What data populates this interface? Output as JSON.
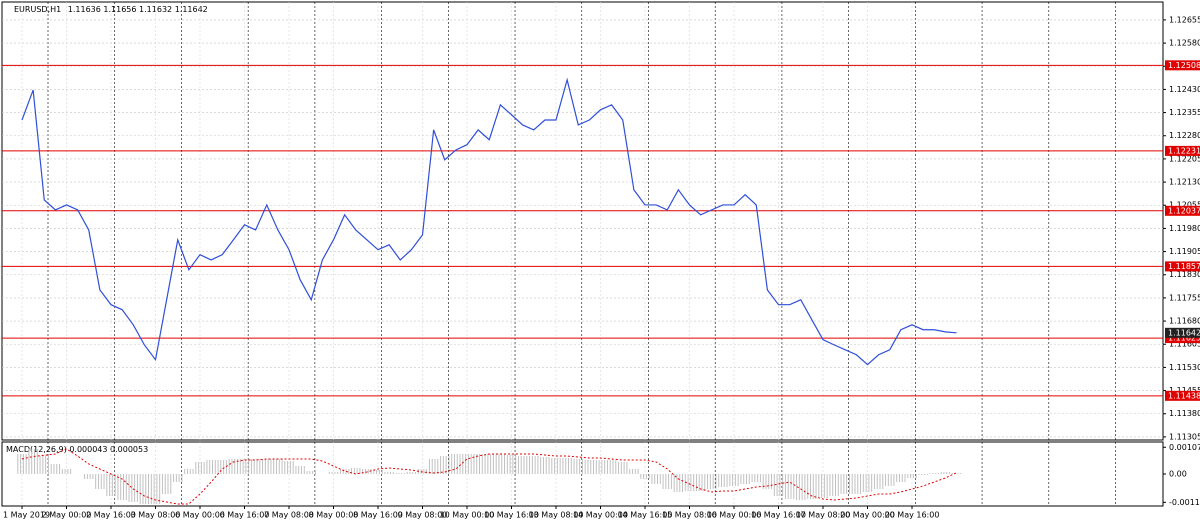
{
  "chart_data": [
    {
      "type": "line",
      "title": "EURUSD,H1",
      "ohlc": [
        1.11636,
        1.11656,
        1.11632,
        1.11642
      ],
      "categories": [
        "1 May 2019",
        null,
        null,
        null,
        "2 May 00:00",
        null,
        null,
        null,
        "2 May 16:00",
        null,
        null,
        null,
        "3 May 08:00",
        null,
        null,
        null,
        "6 May 00:00",
        null,
        null,
        null,
        "6 May 16:00",
        null,
        null,
        null,
        "7 May 08:00",
        null,
        null,
        null,
        "8 May 00:00",
        null,
        null,
        null,
        "8 May 16:00",
        null,
        null,
        null,
        "9 May 08:00",
        null,
        null,
        null,
        "10 May 00:00",
        null,
        null,
        null,
        "10 May 16:00",
        null,
        null,
        null,
        "13 May 08:00",
        null,
        null,
        null,
        "14 May 00:00",
        null,
        null,
        null,
        "14 May 16:00",
        null,
        null,
        null,
        "15 May 08:00",
        null,
        null,
        null,
        "16 May 00:00",
        null,
        null,
        null,
        "16 May 16:00",
        null,
        null,
        null,
        "17 May 08:00",
        null,
        null,
        null,
        "20 May 00:00",
        null,
        null,
        null,
        "20 May 16:00",
        null,
        null,
        null,
        null
      ],
      "values": [
        1.12331,
        1.12428,
        1.12072,
        1.1204,
        1.12056,
        1.1204,
        1.11975,
        1.11781,
        1.11733,
        1.11717,
        1.11668,
        1.11603,
        1.11555,
        1.11749,
        1.11943,
        1.11846,
        1.11895,
        1.11878,
        1.11895,
        1.11943,
        1.11992,
        1.11975,
        1.12056,
        1.11975,
        1.11911,
        1.11814,
        1.11749,
        1.11878,
        1.11943,
        1.12024,
        1.11975,
        1.11943,
        1.11911,
        1.11927,
        1.11878,
        1.11911,
        1.11959,
        1.12299,
        1.12202,
        1.12234,
        1.12251,
        1.12299,
        1.12267,
        1.1238,
        1.12348,
        1.12315,
        1.12299,
        1.12331,
        1.12331,
        1.12461,
        1.12315,
        1.12331,
        1.12364,
        1.1238,
        1.12331,
        1.12105,
        1.12056,
        1.12056,
        1.1204,
        1.12105,
        1.12056,
        1.12024,
        1.1204,
        1.12056,
        1.12056,
        1.12089,
        1.12056,
        1.11781,
        1.11733,
        1.11733,
        1.11749,
        1.11684,
        1.1162,
        1.11603,
        1.11587,
        1.11571,
        1.11539,
        1.11571,
        1.11587,
        1.11652,
        1.11668,
        1.11652,
        1.11652,
        1.11645,
        1.11642
      ],
      "color": "#2f4fd8",
      "ylim": [
        1.11295,
        1.12713
      ],
      "yticks": [
        1.12655,
        {
          "value": 1.1258,
          "label": "1.12580"
        },
        1.12505,
        {
          "value": 1.1243,
          "label": "1.12430"
        },
        1.12355,
        {
          "value": 1.1228,
          "label": "1.12280"
        },
        1.12205,
        {
          "value": 1.1213,
          "label": "1.12130"
        },
        1.12055,
        {
          "value": 1.1198,
          "label": "1.11980"
        },
        1.11905,
        {
          "value": 1.1183,
          "label": "1.11830"
        },
        1.11755,
        {
          "value": 1.1168,
          "label": "1.11680"
        },
        1.11605,
        {
          "value": 1.1153,
          "label": "1.11530"
        },
        1.11455,
        {
          "value": 1.1138,
          "label": "1.11380"
        },
        1.11305
      ],
      "levels": [
        1.12508,
        1.12231,
        1.12037,
        1.11857,
        1.11625,
        1.11438
      ],
      "levels_color": "#e00000",
      "grid": true
    },
    {
      "type": "macd",
      "title": "MACD(12,26,9)",
      "current": [
        4.3e-05,
        5.3e-05
      ],
      "histogram": {
        "color": "#c0c0c0",
        "values": [
          0.0008,
          0.001,
          0.00072,
          0.0004,
          0.0002,
          0,
          -0.0002,
          -0.0006,
          -0.00088,
          -0.00104,
          -0.00112,
          -0.0012,
          -0.0012,
          -0.0008,
          -0.00032,
          0.0002,
          0.00048,
          0.00056,
          0.00056,
          0.0006,
          0.0006,
          0.0006,
          0.0006,
          0.0006,
          0.00052,
          0.00032,
          0.00012,
          0,
          8e-05,
          0.0002,
          0.00024,
          0.0002,
          0.00016,
          8e-05,
          4e-05,
          8e-05,
          0.0002,
          0.0006,
          0.00072,
          0.0008,
          0.0008,
          0.0008,
          0.0008,
          0.0008,
          0.00076,
          0.00072,
          0.00072,
          0.00068,
          0.00064,
          0.00064,
          0.0006,
          0.00056,
          0.00056,
          0.00056,
          0.00048,
          0.0002,
          -0.0002,
          -0.0004,
          -0.0006,
          -0.00072,
          -0.00068,
          -0.00068,
          -0.0006,
          -0.00052,
          -0.00048,
          -0.0004,
          -0.00032,
          -0.0006,
          -0.00088,
          -0.001,
          -0.00104,
          -0.001,
          -0.00096,
          -0.00088,
          -0.0008,
          -0.0008,
          -0.00072,
          -0.0006,
          -0.00048,
          -0.00032,
          -0.00016,
          -4e-05,
          4e-05,
          8e-05,
          4e-05
        ]
      },
      "signal": {
        "color": "#e00000",
        "values": [
          0.0006,
          0.0007,
          0.00075,
          0.0008,
          0.001,
          0.00072,
          0.0004,
          0.0002,
          0,
          -0.0002,
          -0.0006,
          -0.00088,
          -0.00104,
          -0.00112,
          -0.0012,
          -0.0012,
          -0.0008,
          -0.00032,
          0.0002,
          0.00048,
          0.00056,
          0.00056,
          0.0006,
          0.0006,
          0.0006,
          0.0006,
          0.0006,
          0.00052,
          0.00032,
          0.00012,
          0,
          8e-05,
          0.0002,
          0.00024,
          0.0002,
          0.00016,
          8e-05,
          4e-05,
          8e-05,
          0.0002,
          0.0006,
          0.00072,
          0.0008,
          0.0008,
          0.0008,
          0.0008,
          0.0008,
          0.00076,
          0.00072,
          0.00072,
          0.00068,
          0.00064,
          0.00064,
          0.0006,
          0.00056,
          0.00056,
          0.00056,
          0.00048,
          0.0002,
          -0.0002,
          -0.0004,
          -0.0006,
          -0.00072,
          -0.00068,
          -0.00068,
          -0.0006,
          -0.00052,
          -0.00048,
          -0.0004,
          -0.00032,
          -0.0006,
          -0.00088,
          -0.001,
          -0.00104,
          -0.001,
          -0.00096,
          -0.00088,
          -0.0008,
          -0.0008,
          -0.00072,
          -0.0006,
          -0.00048,
          -0.00032,
          -0.00016,
          5e-05
        ]
      },
      "ylim": [
        -0.00128,
        0.00128
      ],
      "yticks": [
        0.00107,
        {
          "value": 0,
          "label": "0.00"
        },
        -0.001133
      ]
    }
  ]
}
